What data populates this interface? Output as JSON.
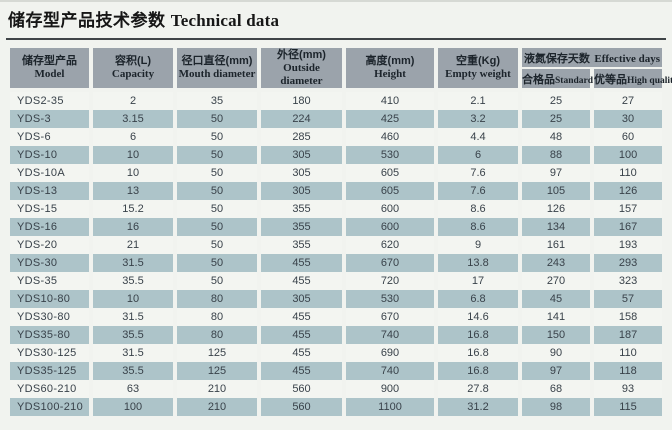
{
  "title": {
    "zh": "储存型产品技术参数",
    "en": "Technical data"
  },
  "table": {
    "columns": [
      {
        "zh": "储存型产品",
        "en": "Model"
      },
      {
        "zh": "容积(L)",
        "en": "Capacity"
      },
      {
        "zh": "径口直径(mm)",
        "en": "Mouth diameter"
      },
      {
        "zh": "外径(mm)",
        "en": "Outside diameter"
      },
      {
        "zh": "高度(mm)",
        "en": "Height"
      },
      {
        "zh": "空重(Kg)",
        "en": "Empty weight"
      }
    ],
    "group": {
      "zh": "液氮保存天数",
      "en": "Effective days",
      "sub": [
        {
          "zh": "合格品",
          "en": "Standard"
        },
        {
          "zh": "优等品",
          "en": "High quality"
        }
      ]
    },
    "rows": [
      [
        "YDS2-35",
        "2",
        "35",
        "180",
        "410",
        "2.1",
        "25",
        "27"
      ],
      [
        "YDS-3",
        "3.15",
        "50",
        "224",
        "425",
        "3.2",
        "25",
        "30"
      ],
      [
        "YDS-6",
        "6",
        "50",
        "285",
        "460",
        "4.4",
        "48",
        "60"
      ],
      [
        "YDS-10",
        "10",
        "50",
        "305",
        "530",
        "6",
        "88",
        "100"
      ],
      [
        "YDS-10A",
        "10",
        "50",
        "305",
        "605",
        "7.6",
        "97",
        "110"
      ],
      [
        "YDS-13",
        "13",
        "50",
        "305",
        "605",
        "7.6",
        "105",
        "126"
      ],
      [
        "YDS-15",
        "15.2",
        "50",
        "355",
        "600",
        "8.6",
        "126",
        "157"
      ],
      [
        "YDS-16",
        "16",
        "50",
        "355",
        "600",
        "8.6",
        "134",
        "167"
      ],
      [
        "YDS-20",
        "21",
        "50",
        "355",
        "620",
        "9",
        "161",
        "193"
      ],
      [
        "YDS-30",
        "31.5",
        "50",
        "455",
        "670",
        "13.8",
        "243",
        "293"
      ],
      [
        "YDS-35",
        "35.5",
        "50",
        "455",
        "720",
        "17",
        "270",
        "323"
      ],
      [
        "YDS10-80",
        "10",
        "80",
        "305",
        "530",
        "6.8",
        "45",
        "57"
      ],
      [
        "YDS30-80",
        "31.5",
        "80",
        "455",
        "670",
        "14.6",
        "141",
        "158"
      ],
      [
        "YDS35-80",
        "35.5",
        "80",
        "455",
        "740",
        "16.8",
        "150",
        "187"
      ],
      [
        "YDS30-125",
        "31.5",
        "125",
        "455",
        "690",
        "16.8",
        "90",
        "110"
      ],
      [
        "YDS35-125",
        "35.5",
        "125",
        "455",
        "740",
        "16.8",
        "97",
        "118"
      ],
      [
        "YDS60-210",
        "63",
        "210",
        "560",
        "900",
        "27.8",
        "68",
        "93"
      ],
      [
        "YDS100-210",
        "100",
        "210",
        "560",
        "1100",
        "31.2",
        "98",
        "115"
      ]
    ]
  },
  "colors": {
    "page-bg": "#f1f3ef",
    "header-bg": "#9ba3ab",
    "row-alt": "#adc4c9",
    "row-light": "#f3f5f1",
    "ink": "#1c242b",
    "body-ink": "#39424a",
    "rule": "#3f4447"
  }
}
